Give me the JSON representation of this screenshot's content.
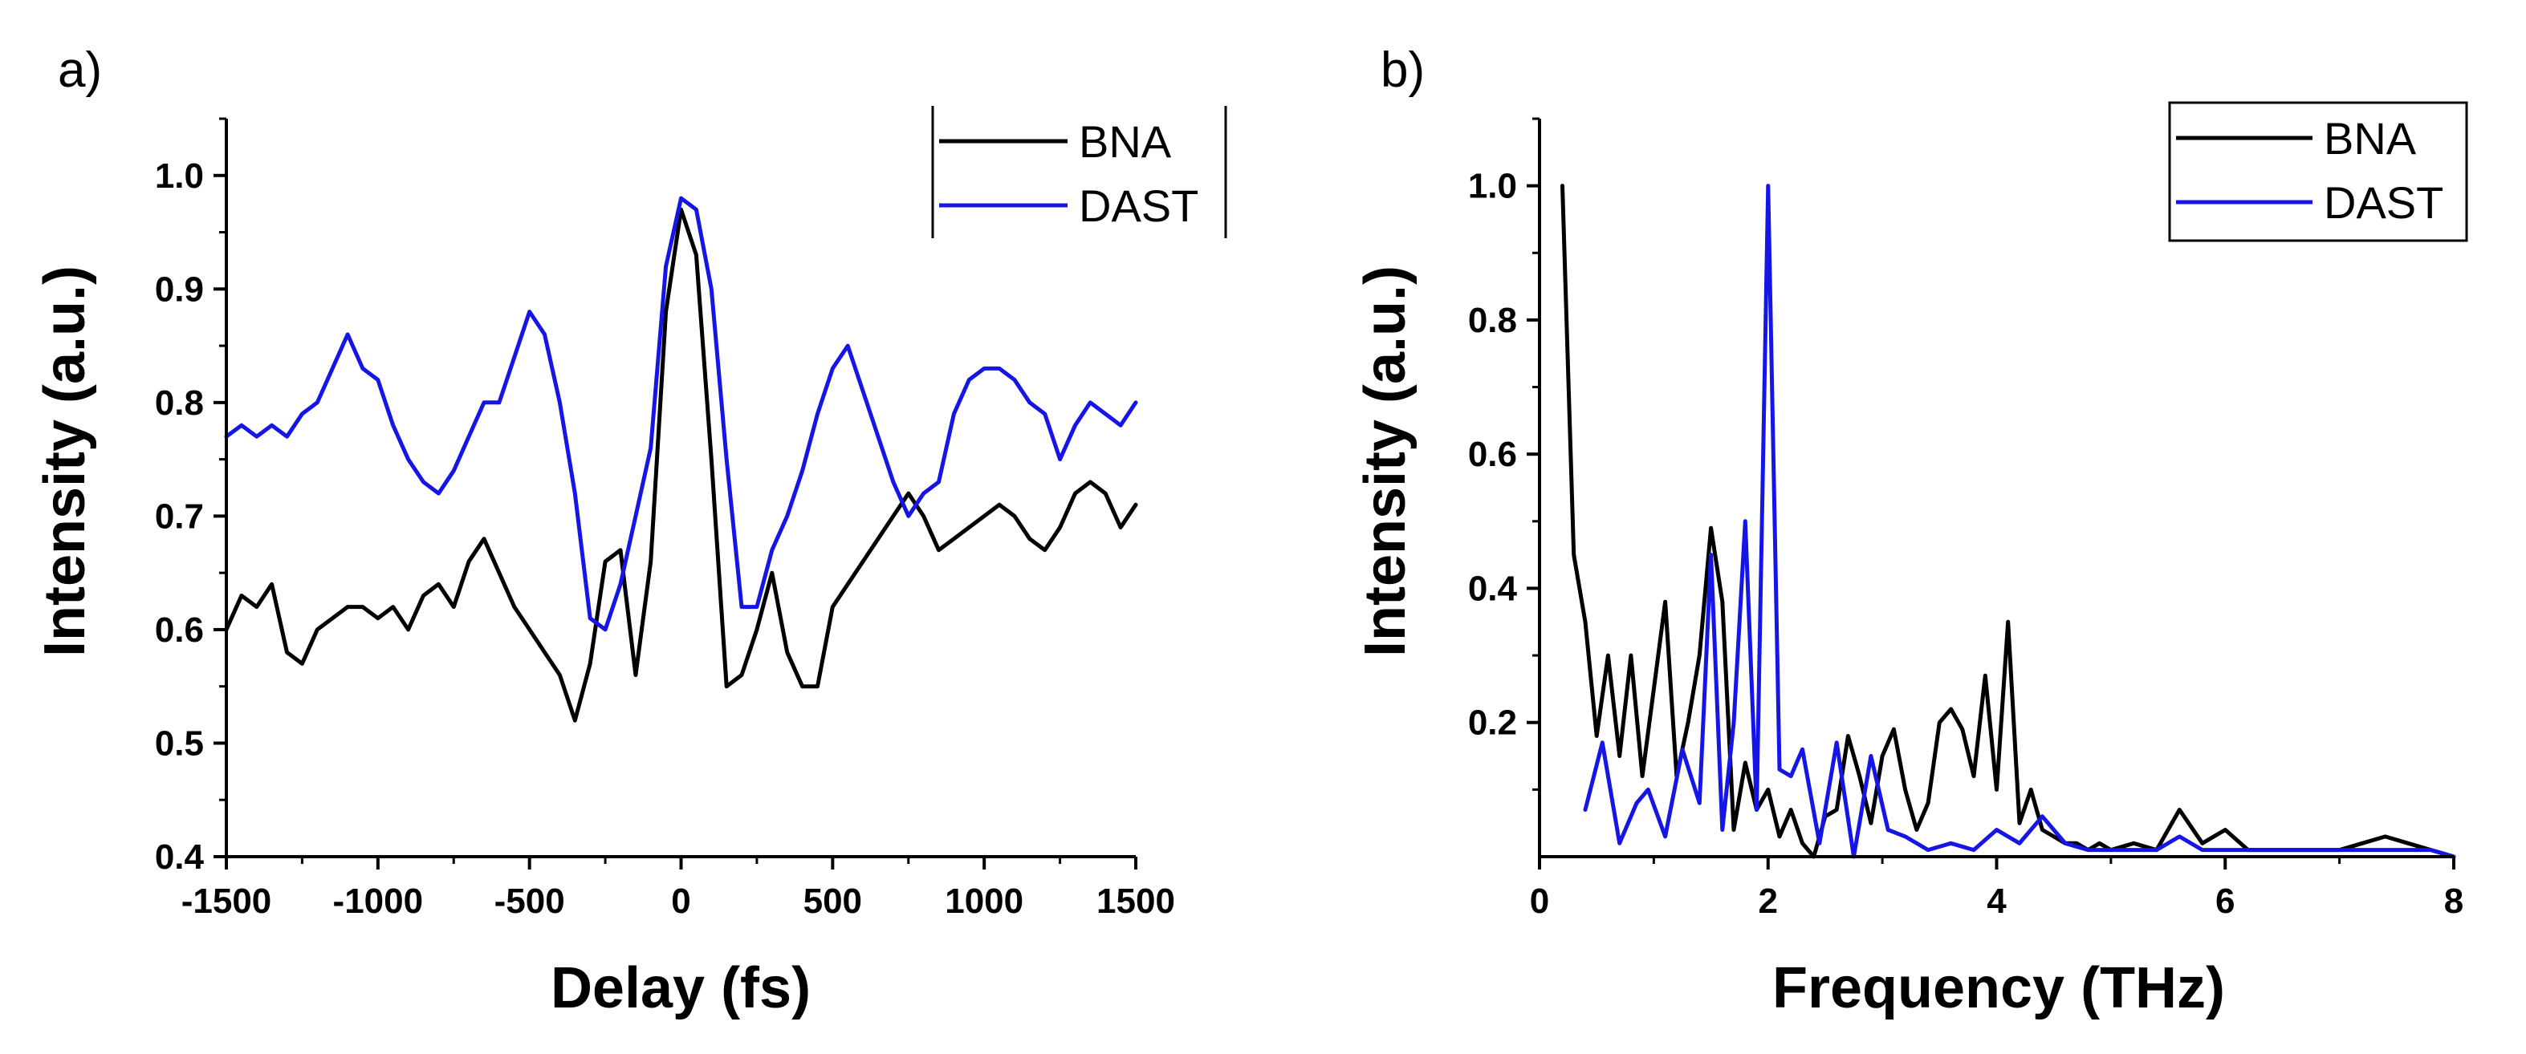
{
  "chart_data": [
    {
      "panel": "a)",
      "type": "line",
      "xlabel": "Delay (fs)",
      "ylabel": "Intensity (a.u.)",
      "xlim": [
        -1500,
        1500
      ],
      "ylim": [
        0.4,
        1.05
      ],
      "xticks": [
        -1500,
        -1000,
        -500,
        0,
        500,
        1000,
        1500
      ],
      "xtick_labels": [
        "-1500",
        "-1000",
        "-500",
        "0",
        "500",
        "1000",
        "1500"
      ],
      "yticks": [
        0.4,
        0.5,
        0.6,
        0.7,
        0.8,
        0.9,
        1.0
      ],
      "ytick_labels": [
        "0.4",
        "0.5",
        "0.6",
        "0.7",
        "0.8",
        "0.9",
        "1.0"
      ],
      "grid": false,
      "legend_position": "top-right",
      "series": [
        {
          "name": "BNA",
          "color": "#000000",
          "x": [
            -1500,
            -1450,
            -1400,
            -1350,
            -1300,
            -1250,
            -1200,
            -1150,
            -1100,
            -1050,
            -1000,
            -950,
            -900,
            -850,
            -800,
            -750,
            -700,
            -650,
            -600,
            -550,
            -500,
            -450,
            -400,
            -350,
            -300,
            -250,
            -200,
            -150,
            -100,
            -50,
            0,
            50,
            100,
            150,
            200,
            250,
            300,
            350,
            400,
            450,
            500,
            550,
            600,
            650,
            700,
            750,
            800,
            850,
            900,
            950,
            1000,
            1050,
            1100,
            1150,
            1200,
            1250,
            1300,
            1350,
            1400,
            1450,
            1500
          ],
          "y": [
            0.6,
            0.63,
            0.62,
            0.64,
            0.58,
            0.57,
            0.6,
            0.61,
            0.62,
            0.62,
            0.61,
            0.62,
            0.6,
            0.63,
            0.64,
            0.62,
            0.66,
            0.68,
            0.65,
            0.62,
            0.6,
            0.58,
            0.56,
            0.52,
            0.57,
            0.66,
            0.67,
            0.56,
            0.66,
            0.88,
            0.97,
            0.93,
            0.75,
            0.55,
            0.56,
            0.6,
            0.65,
            0.58,
            0.55,
            0.55,
            0.62,
            0.64,
            0.66,
            0.68,
            0.7,
            0.72,
            0.7,
            0.67,
            0.68,
            0.69,
            0.7,
            0.71,
            0.7,
            0.68,
            0.67,
            0.69,
            0.72,
            0.73,
            0.72,
            0.69,
            0.71
          ]
        },
        {
          "name": "DAST",
          "color": "#1515e6",
          "x": [
            -1500,
            -1450,
            -1400,
            -1350,
            -1300,
            -1250,
            -1200,
            -1150,
            -1100,
            -1050,
            -1000,
            -950,
            -900,
            -850,
            -800,
            -750,
            -700,
            -650,
            -600,
            -550,
            -500,
            -450,
            -400,
            -350,
            -300,
            -250,
            -200,
            -150,
            -100,
            -50,
            0,
            50,
            100,
            150,
            200,
            250,
            300,
            350,
            400,
            450,
            500,
            550,
            600,
            650,
            700,
            750,
            800,
            850,
            900,
            950,
            1000,
            1050,
            1100,
            1150,
            1200,
            1250,
            1300,
            1350,
            1400,
            1450,
            1500
          ],
          "y": [
            0.77,
            0.78,
            0.77,
            0.78,
            0.77,
            0.79,
            0.8,
            0.83,
            0.86,
            0.83,
            0.82,
            0.78,
            0.75,
            0.73,
            0.72,
            0.74,
            0.77,
            0.8,
            0.8,
            0.84,
            0.88,
            0.86,
            0.8,
            0.72,
            0.61,
            0.6,
            0.64,
            0.7,
            0.76,
            0.92,
            0.98,
            0.97,
            0.9,
            0.75,
            0.62,
            0.62,
            0.67,
            0.7,
            0.74,
            0.79,
            0.83,
            0.85,
            0.81,
            0.77,
            0.73,
            0.7,
            0.72,
            0.73,
            0.79,
            0.82,
            0.83,
            0.83,
            0.82,
            0.8,
            0.79,
            0.75,
            0.78,
            0.8,
            0.79,
            0.78,
            0.8
          ]
        }
      ]
    },
    {
      "panel": "b)",
      "type": "line",
      "xlabel": "Frequency (THz)",
      "ylabel": "Intensity (a.u.)",
      "xlim": [
        0,
        8
      ],
      "ylim": [
        0,
        1.1
      ],
      "xticks": [
        0,
        2,
        4,
        6,
        8
      ],
      "xtick_labels": [
        "0",
        "2",
        "4",
        "6",
        "8"
      ],
      "yticks": [
        0.2,
        0.4,
        0.6,
        0.8,
        1.0
      ],
      "ytick_labels": [
        "0.2",
        "0.4",
        "0.6",
        "0.8",
        "1.0"
      ],
      "grid": false,
      "legend_position": "top-right",
      "series": [
        {
          "name": "BNA",
          "color": "#000000",
          "x": [
            0.2,
            0.3,
            0.4,
            0.5,
            0.6,
            0.7,
            0.8,
            0.9,
            1.0,
            1.1,
            1.2,
            1.3,
            1.4,
            1.5,
            1.6,
            1.7,
            1.8,
            1.9,
            2.0,
            2.1,
            2.2,
            2.3,
            2.4,
            2.5,
            2.6,
            2.7,
            2.8,
            2.9,
            3.0,
            3.1,
            3.2,
            3.3,
            3.4,
            3.5,
            3.6,
            3.7,
            3.8,
            3.9,
            4.0,
            4.1,
            4.2,
            4.3,
            4.4,
            4.5,
            4.6,
            4.7,
            4.8,
            4.9,
            5.0,
            5.2,
            5.4,
            5.6,
            5.8,
            6.0,
            6.2,
            6.4,
            6.6,
            6.8,
            7.0,
            7.2,
            7.4,
            7.6,
            7.8,
            8.0
          ],
          "y": [
            1.0,
            0.45,
            0.35,
            0.18,
            0.3,
            0.15,
            0.3,
            0.12,
            0.25,
            0.38,
            0.12,
            0.2,
            0.3,
            0.49,
            0.38,
            0.04,
            0.14,
            0.07,
            0.1,
            0.03,
            0.07,
            0.02,
            0.0,
            0.06,
            0.07,
            0.18,
            0.12,
            0.05,
            0.15,
            0.19,
            0.1,
            0.04,
            0.08,
            0.2,
            0.22,
            0.19,
            0.12,
            0.27,
            0.1,
            0.35,
            0.05,
            0.1,
            0.04,
            0.03,
            0.02,
            0.02,
            0.01,
            0.02,
            0.01,
            0.02,
            0.01,
            0.07,
            0.02,
            0.04,
            0.01,
            0.01,
            0.01,
            0.01,
            0.01,
            0.02,
            0.03,
            0.02,
            0.01,
            0.0
          ]
        },
        {
          "name": "DAST",
          "color": "#1515e6",
          "x": [
            0.4,
            0.55,
            0.7,
            0.85,
            0.95,
            1.1,
            1.25,
            1.4,
            1.5,
            1.6,
            1.7,
            1.8,
            1.9,
            2.0,
            2.1,
            2.2,
            2.3,
            2.45,
            2.6,
            2.75,
            2.9,
            3.05,
            3.2,
            3.4,
            3.6,
            3.8,
            4.0,
            4.2,
            4.4,
            4.6,
            4.8,
            5.0,
            5.2,
            5.4,
            5.6,
            5.8,
            6.0,
            6.2,
            6.4,
            6.6,
            6.8,
            7.0,
            7.2,
            7.4,
            7.6,
            7.8,
            8.0
          ],
          "y": [
            0.07,
            0.17,
            0.02,
            0.08,
            0.1,
            0.03,
            0.16,
            0.08,
            0.45,
            0.04,
            0.2,
            0.5,
            0.07,
            1.0,
            0.13,
            0.12,
            0.16,
            0.02,
            0.17,
            0.0,
            0.15,
            0.04,
            0.03,
            0.01,
            0.02,
            0.01,
            0.04,
            0.02,
            0.06,
            0.02,
            0.01,
            0.01,
            0.01,
            0.01,
            0.03,
            0.01,
            0.01,
            0.01,
            0.01,
            0.01,
            0.01,
            0.01,
            0.01,
            0.01,
            0.01,
            0.01,
            0.0
          ]
        }
      ]
    }
  ]
}
